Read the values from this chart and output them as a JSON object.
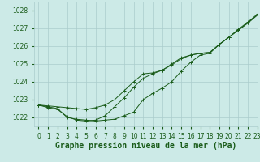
{
  "title": "Graphe pression niveau de la mer (hPa)",
  "background_color": "#cceae7",
  "grid_color": "#aacccc",
  "line_color": "#1a5c1a",
  "marker_color": "#1a5c1a",
  "xlim": [
    -0.5,
    23
  ],
  "ylim": [
    1021.5,
    1028.5
  ],
  "yticks": [
    1022,
    1023,
    1024,
    1025,
    1026,
    1027,
    1028
  ],
  "xticks": [
    0,
    1,
    2,
    3,
    4,
    5,
    6,
    7,
    8,
    9,
    10,
    11,
    12,
    13,
    14,
    15,
    16,
    17,
    18,
    19,
    20,
    21,
    22,
    23
  ],
  "series": [
    [
      1022.7,
      1022.65,
      1022.6,
      1022.55,
      1022.5,
      1022.45,
      1022.55,
      1022.7,
      1023.0,
      1023.5,
      1024.0,
      1024.45,
      1024.5,
      1024.65,
      1025.0,
      1025.35,
      1025.5,
      1025.6,
      1025.65,
      1026.1,
      1026.5,
      1026.9,
      1027.3,
      1027.75
    ],
    [
      1022.7,
      1022.6,
      1022.5,
      1022.0,
      1021.9,
      1021.85,
      1021.8,
      1021.85,
      1021.9,
      1022.1,
      1022.3,
      1023.0,
      1023.35,
      1023.65,
      1024.0,
      1024.6,
      1025.1,
      1025.5,
      1025.6,
      1026.1,
      1026.5,
      1026.95,
      1027.35,
      1027.8
    ],
    [
      1022.7,
      1022.55,
      1022.45,
      1022.05,
      1021.85,
      1021.8,
      1021.85,
      1022.1,
      1022.6,
      1023.1,
      1023.7,
      1024.2,
      1024.45,
      1024.65,
      1024.95,
      1025.3,
      1025.5,
      1025.6,
      1025.65,
      1026.1,
      1026.5,
      1026.9,
      1027.3,
      1027.75
    ]
  ],
  "title_fontsize": 7,
  "tick_fontsize": 5.5,
  "title_color": "#1a5c1a",
  "tick_color": "#1a5c1a",
  "title_fontweight": "bold"
}
